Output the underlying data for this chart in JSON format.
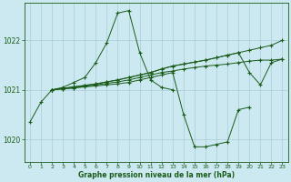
{
  "xlabel": "Graphe pression niveau de la mer (hPa)",
  "bg_color": "#cce8f0",
  "grid_color": "#aaccd8",
  "line_color": "#1a5c1a",
  "xlim": [
    -0.5,
    23.5
  ],
  "ylim": [
    1019.55,
    1022.75
  ],
  "yticks": [
    1020,
    1021,
    1022
  ],
  "xticks": [
    0,
    1,
    2,
    3,
    4,
    5,
    6,
    7,
    8,
    9,
    10,
    11,
    12,
    13,
    14,
    15,
    16,
    17,
    18,
    19,
    20,
    21,
    22,
    23
  ],
  "curves": [
    {
      "x": [
        0,
        1,
        2,
        3,
        4,
        5,
        6,
        7,
        8,
        9,
        10,
        11,
        12,
        13
      ],
      "y": [
        1020.35,
        1020.75,
        1021.0,
        1021.05,
        1021.15,
        1021.25,
        1021.55,
        1021.95,
        1022.55,
        1022.6,
        1021.75,
        1021.2,
        1021.05,
        1021.0
      ]
    },
    {
      "x": [
        2,
        3,
        4,
        5,
        6,
        7,
        8,
        9,
        10,
        11,
        12,
        13,
        14,
        15,
        16,
        17,
        18,
        19,
        20
      ],
      "y": [
        1021.0,
        1021.02,
        1021.04,
        1021.06,
        1021.08,
        1021.1,
        1021.12,
        1021.15,
        1021.2,
        1021.25,
        1021.3,
        1021.35,
        1020.5,
        1019.85,
        1019.85,
        1019.9,
        1019.95,
        1020.6,
        1020.65
      ]
    },
    {
      "x": [
        2,
        3,
        4,
        5,
        6,
        7,
        8,
        9,
        10,
        11,
        12,
        13,
        14,
        15,
        16,
        17,
        18,
        19,
        20,
        21,
        22,
        23
      ],
      "y": [
        1021.0,
        1021.02,
        1021.04,
        1021.07,
        1021.1,
        1021.13,
        1021.16,
        1021.2,
        1021.25,
        1021.3,
        1021.35,
        1021.38,
        1021.42,
        1021.45,
        1021.48,
        1021.5,
        1021.52,
        1021.55,
        1021.58,
        1021.6,
        1021.6,
        1021.62
      ]
    },
    {
      "x": [
        2,
        3,
        4,
        5,
        6,
        7,
        8,
        9,
        10,
        11,
        12,
        13,
        14,
        15,
        16,
        17,
        18,
        19,
        20,
        21,
        22,
        23
      ],
      "y": [
        1021.0,
        1021.03,
        1021.06,
        1021.09,
        1021.12,
        1021.16,
        1021.2,
        1021.25,
        1021.3,
        1021.35,
        1021.42,
        1021.48,
        1021.52,
        1021.56,
        1021.6,
        1021.65,
        1021.7,
        1021.75,
        1021.8,
        1021.85,
        1021.9,
        1022.0
      ]
    },
    {
      "x": [
        2,
        3,
        4,
        5,
        6,
        7,
        8,
        9,
        10,
        11,
        12,
        13,
        14,
        15,
        16,
        17,
        18,
        19,
        20,
        21,
        22,
        23
      ],
      "y": [
        1021.0,
        1021.03,
        1021.06,
        1021.09,
        1021.12,
        1021.16,
        1021.2,
        1021.25,
        1021.3,
        1021.35,
        1021.42,
        1021.48,
        1021.52,
        1021.56,
        1021.6,
        1021.65,
        1021.7,
        1021.75,
        1021.35,
        1021.1,
        1021.55,
        1021.62
      ]
    }
  ]
}
